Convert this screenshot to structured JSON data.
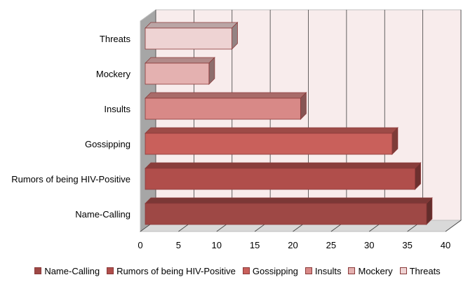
{
  "chart_data": {
    "type": "bar",
    "orientation": "horizontal",
    "style": "3d",
    "title": "",
    "xlabel": "",
    "ylabel": "",
    "xlim": [
      0,
      40
    ],
    "x_ticks": [
      "0",
      "5",
      "10",
      "15",
      "20",
      "25",
      "30",
      "35",
      "40"
    ],
    "grid": true,
    "legend_position": "bottom",
    "categories": [
      "Threats",
      "Mockery",
      "Insults",
      "Gossipping",
      "Rumors of being HIV-Positive",
      "Name-Calling"
    ],
    "values": [
      12,
      9,
      21,
      33,
      36,
      37.5
    ],
    "colors": [
      "#EED3D3",
      "#E4B1B0",
      "#D88987",
      "#C9605B",
      "#B04E4B",
      "#9E4845"
    ],
    "legend": [
      "Name-Calling",
      "Rumors of being HIV-Positive",
      "Gossipping",
      "Insults",
      "Mockery",
      "Threats"
    ],
    "legend_colors": [
      "#9E4845",
      "#B04E4B",
      "#C9605B",
      "#D88987",
      "#E4B1B0",
      "#EED3D3"
    ]
  }
}
